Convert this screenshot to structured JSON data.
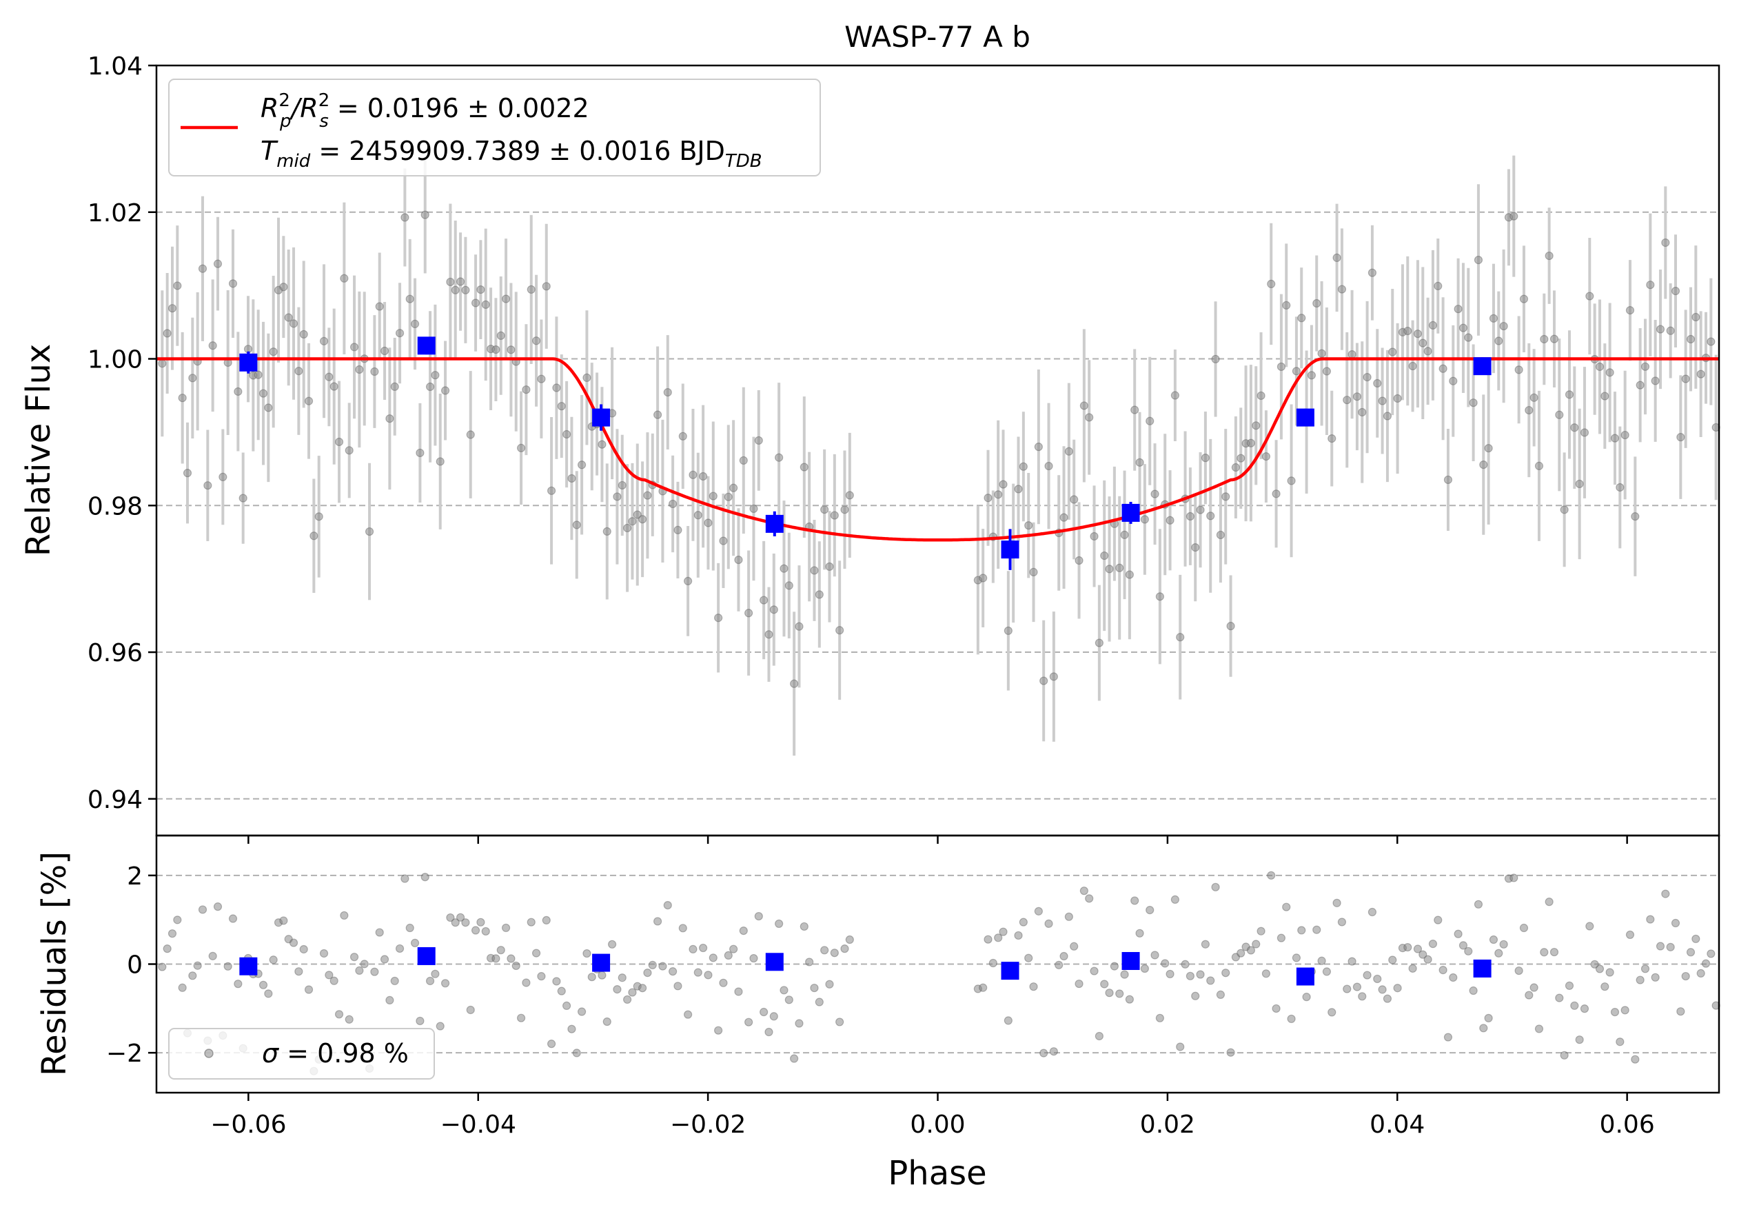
{
  "chart_data": [
    {
      "type": "scatter",
      "title": "WASP-77 A b",
      "ylabel": "Relative Flux",
      "xlim": [
        -0.068,
        0.068
      ],
      "ylim": [
        0.935,
        1.04
      ],
      "x_ticks": [
        "−0.06",
        "−0.04",
        "−0.02",
        "0.00",
        "0.02",
        "0.04",
        "0.06"
      ],
      "y_ticks": [
        "0.94",
        "0.96",
        "0.98",
        "1.00",
        "1.02",
        "1.04"
      ],
      "grid": "horizontal dashed",
      "legend_position": "top-left",
      "legend": {
        "line1_a": "R",
        "line1_a_sup": "2",
        "line1_a_sub": "p",
        "line1_b": "/R",
        "line1_b_sup": "2",
        "line1_b_sub": "s",
        "line1_rest": " = 0.0196 ± 0.0022",
        "line2_a": "T",
        "line2_a_sub": "mid",
        "line2_rest": " = 2459909.7389 ± 0.0016 BJD",
        "line2_sub": "TDB"
      },
      "model": {
        "color": "#ff0000",
        "depth": 0.0247,
        "t14_half": 0.0335,
        "t23_half": 0.0255,
        "ingress_depth": 0.0165
      },
      "binned": {
        "color": "#0000ff",
        "x": [
          -0.06,
          -0.0445,
          -0.0293,
          -0.0142,
          0.0063,
          0.0168,
          0.032,
          0.0474
        ],
        "y": [
          0.9995,
          1.0018,
          0.992,
          0.9775,
          0.974,
          0.979,
          0.992,
          0.999
        ],
        "err": [
          0.0015,
          0.0012,
          0.0018,
          0.0017,
          0.0028,
          0.0015,
          0.0012,
          0.0012
        ]
      },
      "raw_color": "#808080",
      "errorbar_color": "#cccccc"
    },
    {
      "type": "scatter",
      "ylabel": "Residuals [%]",
      "xlabel": "Phase",
      "xlim": [
        -0.068,
        0.068
      ],
      "ylim": [
        -2.9,
        2.9
      ],
      "y_ticks": [
        "−2",
        "0",
        "2"
      ],
      "grid": "horizontal dashed",
      "legend_position": "bottom-left",
      "legend": {
        "sigma_sym": "σ",
        "sigma_text": " = 0.98 %"
      },
      "binned": {
        "x": [
          -0.06,
          -0.0445,
          -0.0293,
          -0.0142,
          0.0063,
          0.0168,
          0.032,
          0.0474
        ],
        "y": [
          -0.05,
          0.18,
          0.03,
          0.05,
          -0.15,
          0.07,
          -0.28,
          -0.1
        ]
      }
    }
  ]
}
